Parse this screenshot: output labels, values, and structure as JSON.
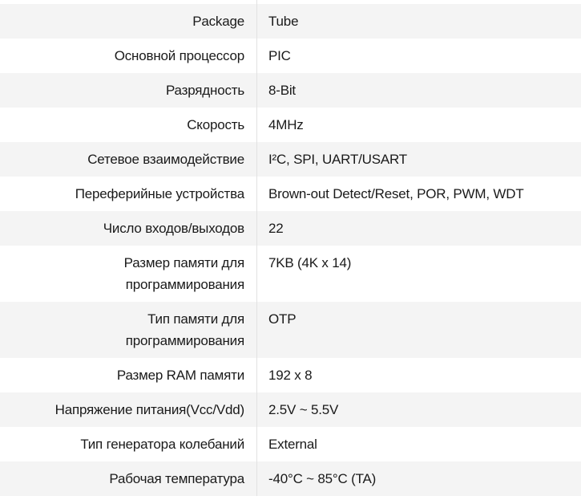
{
  "spec_table": {
    "rows": [
      {
        "label": "Package",
        "value": "Tube"
      },
      {
        "label": "Основной процессор",
        "value": "PIC"
      },
      {
        "label": "Разрядность",
        "value": "8-Bit"
      },
      {
        "label": "Скорость",
        "value": "4MHz"
      },
      {
        "label": "Сетевое взаимодействие",
        "value": "I²C, SPI, UART/USART"
      },
      {
        "label": "Переферийные устройства",
        "value": "Brown-out Detect/Reset, POR, PWM, WDT"
      },
      {
        "label": "Число входов/выходов",
        "value": "22"
      },
      {
        "label": "Размер памяти для\nпрограммирования",
        "value": "7KB (4K x 14)"
      },
      {
        "label": "Тип памяти для\nпрограммирования",
        "value": "OTP"
      },
      {
        "label": "Размер RAM памяти",
        "value": "192 x 8"
      },
      {
        "label": "Напряжение питания(Vcc/Vdd)",
        "value": "2.5V ~ 5.5V"
      },
      {
        "label": "Тип генератора колебаний",
        "value": "External"
      },
      {
        "label": "Рабочая температура",
        "value": "-40°C ~ 85°C (TA)"
      }
    ],
    "colors": {
      "alt_row_bg": "#f4f4f4",
      "divider": "#e2e2e2",
      "text": "#1a1a1a"
    }
  }
}
